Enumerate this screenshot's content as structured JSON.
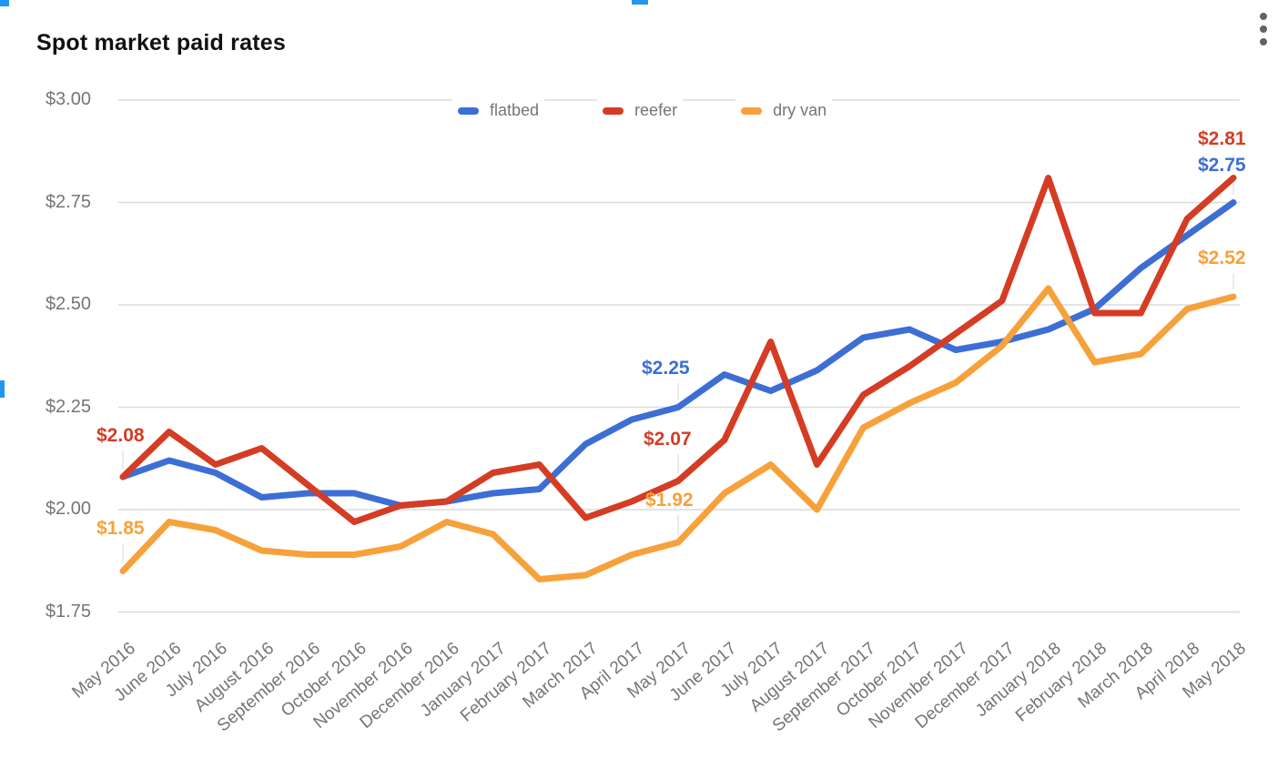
{
  "header": {
    "title": "Spot market paid rates"
  },
  "menu": {
    "icon": "kebab-menu"
  },
  "selection": {
    "handle_color": "#2196f3"
  },
  "chart_data": {
    "type": "line",
    "title": "Spot market paid rates",
    "legend_position": "top",
    "grid": true,
    "ylim": [
      1.75,
      3.0
    ],
    "y_ticks": [
      "$3.00",
      "$2.75",
      "$2.50",
      "$2.25",
      "$2.00",
      "$1.75"
    ],
    "y_tick_values": [
      3.0,
      2.75,
      2.5,
      2.25,
      2.0,
      1.75
    ],
    "categories": [
      "May 2016",
      "June 2016",
      "July 2016",
      "August 2016",
      "September 2016",
      "October 2016",
      "November 2016",
      "December 2016",
      "January 2017",
      "February 2017",
      "March 2017",
      "April 2017",
      "May 2017",
      "June 2017",
      "July 2017",
      "August 2017",
      "September 2017",
      "October 2017",
      "November 2017",
      "December 2017",
      "January 2018",
      "February 2018",
      "March 2018",
      "April 2018",
      "May 2018"
    ],
    "series": [
      {
        "name": "flatbed",
        "color": "#3c6ed5",
        "values": [
          2.08,
          2.12,
          2.09,
          2.03,
          2.04,
          2.04,
          2.01,
          2.02,
          2.04,
          2.05,
          2.16,
          2.22,
          2.25,
          2.33,
          2.29,
          2.34,
          2.42,
          2.44,
          2.39,
          2.41,
          2.44,
          2.49,
          2.59,
          2.67,
          2.75
        ]
      },
      {
        "name": "reefer",
        "color": "#d43c24",
        "values": [
          2.08,
          2.19,
          2.11,
          2.15,
          2.06,
          1.97,
          2.01,
          2.02,
          2.09,
          2.11,
          1.98,
          2.02,
          2.07,
          2.17,
          2.41,
          2.11,
          2.28,
          2.35,
          2.43,
          2.51,
          2.81,
          2.48,
          2.48,
          2.71,
          2.81
        ]
      },
      {
        "name": "dry van",
        "color": "#f7a13b",
        "values": [
          1.85,
          1.97,
          1.95,
          1.9,
          1.89,
          1.89,
          1.91,
          1.97,
          1.94,
          1.83,
          1.84,
          1.89,
          1.92,
          2.04,
          2.11,
          2.0,
          2.2,
          2.26,
          2.31,
          2.4,
          2.54,
          2.36,
          2.38,
          2.49,
          2.52
        ]
      }
    ],
    "annotations": [
      {
        "series": "reefer",
        "category": "May 2016",
        "text": "$2.08"
      },
      {
        "series": "dry van",
        "category": "May 2016",
        "text": "$1.85"
      },
      {
        "series": "flatbed",
        "category": "May 2017",
        "text": "$2.25"
      },
      {
        "series": "reefer",
        "category": "May 2017",
        "text": "$2.07"
      },
      {
        "series": "dry van",
        "category": "May 2017",
        "text": "$1.92"
      },
      {
        "series": "reefer",
        "category": "May 2018",
        "text": "$2.81"
      },
      {
        "series": "flatbed",
        "category": "May 2018",
        "text": "$2.75"
      },
      {
        "series": "dry van",
        "category": "May 2018",
        "text": "$2.52"
      }
    ]
  }
}
